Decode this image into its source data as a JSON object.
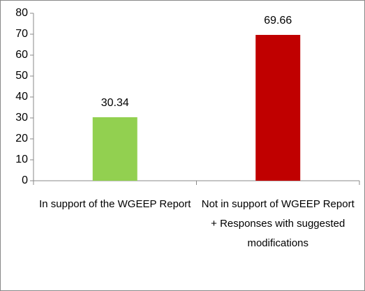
{
  "chart_data": {
    "type": "bar",
    "categories": [
      "In support of the WGEEP Report",
      "Not in support of WGEEP Report + Responses with suggested modifications"
    ],
    "values": [
      30.34,
      69.66
    ],
    "colors": [
      "#92d050",
      "#c00000"
    ],
    "ylim": [
      0,
      80
    ],
    "yticks": [
      0,
      10,
      20,
      30,
      40,
      50,
      60,
      70,
      80
    ],
    "grid": false
  }
}
